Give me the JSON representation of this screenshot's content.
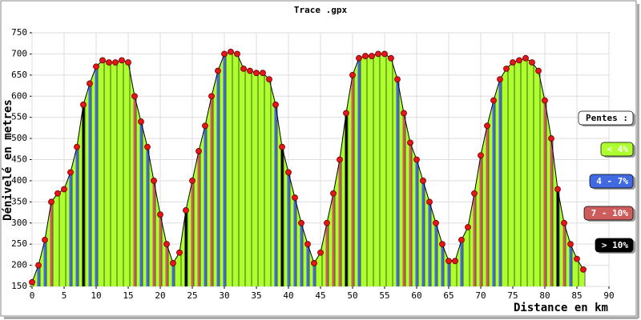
{
  "chart_data": {
    "type": "area",
    "title": "Trace .gpx",
    "x_label": "Distance en km",
    "y_label": "Dénivelé en metres",
    "x": [
      0,
      1,
      2,
      3,
      4,
      5,
      6,
      7,
      8,
      9,
      10,
      11,
      12,
      13,
      14,
      15,
      16,
      17,
      18,
      19,
      20,
      21,
      22,
      23,
      24,
      25,
      26,
      27,
      28,
      29,
      30,
      31,
      32,
      33,
      34,
      35,
      36,
      37,
      38,
      39,
      40,
      41,
      42,
      43,
      44,
      45,
      46,
      47,
      48,
      49,
      50,
      51,
      52,
      53,
      54,
      55,
      56,
      57,
      58,
      59,
      60,
      61,
      62,
      63,
      64,
      65,
      66,
      67,
      68,
      69,
      70,
      71,
      72,
      73,
      74,
      75,
      76,
      77,
      78,
      79,
      80,
      81,
      82,
      83,
      84,
      85,
      86
    ],
    "values": [
      160,
      200,
      260,
      350,
      370,
      380,
      420,
      480,
      580,
      630,
      670,
      685,
      680,
      680,
      685,
      680,
      600,
      540,
      480,
      400,
      320,
      250,
      205,
      230,
      330,
      400,
      470,
      530,
      600,
      660,
      700,
      705,
      700,
      665,
      660,
      655,
      655,
      640,
      580,
      480,
      420,
      360,
      300,
      250,
      205,
      230,
      300,
      370,
      450,
      560,
      650,
      690,
      695,
      695,
      700,
      700,
      690,
      640,
      560,
      490,
      450,
      400,
      350,
      300,
      250,
      210,
      210,
      260,
      290,
      370,
      460,
      530,
      590,
      640,
      665,
      680,
      685,
      690,
      680,
      660,
      590,
      500,
      380,
      300,
      250,
      215,
      190
    ],
    "point_colors": [
      "#adff2f",
      "#4169e1",
      "#4169e1",
      "#cd5c5c",
      "#adff2f",
      "#adff2f",
      "#4169e1",
      "#4169e1",
      "#000000",
      "#4169e1",
      "#4169e1",
      "#adff2f",
      "#adff2f",
      "#adff2f",
      "#adff2f",
      "#adff2f",
      "#cd5c5c",
      "#4169e1",
      "#4169e1",
      "#cd5c5c",
      "#cd5c5c",
      "#cd5c5c",
      "#4169e1",
      "#adff2f",
      "#000000",
      "#cd5c5c",
      "#cd5c5c",
      "#4169e1",
      "#cd5c5c",
      "#4169e1",
      "#4169e1",
      "#adff2f",
      "#adff2f",
      "#adff2f",
      "#adff2f",
      "#adff2f",
      "#adff2f",
      "#adff2f",
      "#4169e1",
      "#000000",
      "#4169e1",
      "#4169e1",
      "#4169e1",
      "#4169e1",
      "#4169e1",
      "#adff2f",
      "#cd5c5c",
      "#cd5c5c",
      "#cd5c5c",
      "#000000",
      "#cd5c5c",
      "#4169e1",
      "#adff2f",
      "#adff2f",
      "#adff2f",
      "#adff2f",
      "#adff2f",
      "#4169e1",
      "#cd5c5c",
      "#cd5c5c",
      "#4169e1",
      "#4169e1",
      "#4169e1",
      "#4169e1",
      "#4169e1",
      "#4169e1",
      "#adff2f",
      "#4169e1",
      "#adff2f",
      "#cd5c5c",
      "#cd5c5c",
      "#cd5c5c",
      "#4169e1",
      "#4169e1",
      "#adff2f",
      "#adff2f",
      "#adff2f",
      "#adff2f",
      "#adff2f",
      "#adff2f",
      "#cd5c5c",
      "#cd5c5c",
      "#000000",
      "#cd5c5c",
      "#4169e1",
      "#adff2f",
      "#adff2f"
    ],
    "fill_color": "#adff2f",
    "marker_color": "#e8141a",
    "xlim": [
      0,
      90
    ],
    "xticks": [
      0,
      5,
      10,
      15,
      20,
      25,
      30,
      35,
      40,
      45,
      50,
      55,
      60,
      65,
      70,
      75,
      80,
      85,
      90
    ],
    "ylim": [
      150,
      750
    ],
    "yticks": [
      150,
      200,
      250,
      300,
      350,
      400,
      450,
      500,
      550,
      600,
      650,
      700,
      750
    ],
    "grid": true,
    "legend": {
      "title": "Pentes :",
      "items": [
        {
          "label": "< 4%",
          "color": "#adff2f",
          "text_color": "#ffffff"
        },
        {
          "label": "4 - 7%",
          "color": "#4169e1",
          "text_color": "#ffffff"
        },
        {
          "label": "7 - 10%",
          "color": "#cd5c5c",
          "text_color": "#ffffff"
        },
        {
          "label": "> 10%",
          "color": "#000000",
          "text_color": "#ffffff"
        }
      ]
    }
  }
}
